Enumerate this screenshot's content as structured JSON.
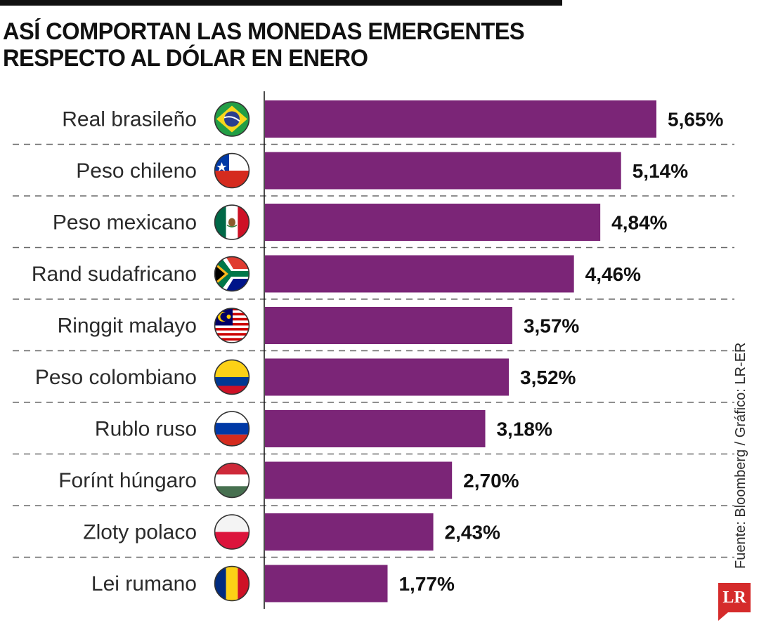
{
  "chart_data": {
    "type": "bar",
    "orientation": "horizontal",
    "title_lines": [
      "ASÍ COMPORTAN LAS MONEDAS EMERGENTES",
      "RESPECTO AL DÓLAR EN ENERO"
    ],
    "categories": [
      "Real brasileño",
      "Peso chileno",
      "Peso mexicano",
      "Rand sudafricano",
      "Ringgit malayo",
      "Peso colombiano",
      "Rublo ruso",
      "Forínt húngaro",
      "Zloty polaco",
      "Lei rumano"
    ],
    "values": [
      5.65,
      5.14,
      4.84,
      4.46,
      3.57,
      3.52,
      3.18,
      2.7,
      2.43,
      1.77
    ],
    "value_labels": [
      "5,65%",
      "5,14%",
      "4,84%",
      "4,46%",
      "3,57%",
      "3,52%",
      "3,18%",
      "2,70%",
      "2,43%",
      "1,77%"
    ],
    "flags": [
      "brazil-flag",
      "chile-flag",
      "mexico-flag",
      "south-africa-flag",
      "malaysia-flag",
      "colombia-flag",
      "russia-flag",
      "hungary-flag",
      "poland-flag",
      "romania-flag"
    ],
    "xlim": [
      0,
      5.65
    ],
    "grid": false,
    "bar_color": "#7b2577",
    "xlabel": "",
    "ylabel": ""
  },
  "source_text": "Fuente: Bloomberg / Gráfico: LR-ER",
  "logo_text": "LR"
}
